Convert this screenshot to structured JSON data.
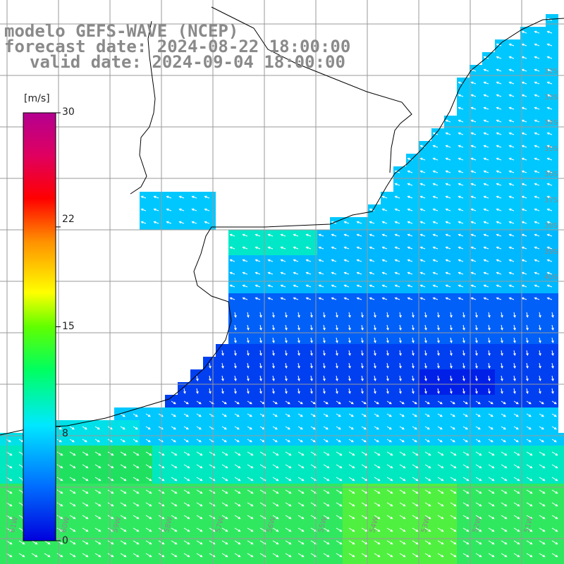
{
  "titles": {
    "model": "modelo GEFS-WAVE (NCEP)",
    "forecast": "forecast date: 2024-08-22 18:00:00",
    "valid": "valid date: 2024-09-04 18:00:00"
  },
  "colorbar": {
    "unit": "[m/s]",
    "ticks": [
      "30",
      "22",
      "15",
      "8",
      "0"
    ],
    "tick_values": [
      30,
      22,
      15,
      8,
      0
    ],
    "range": [
      0,
      30
    ],
    "colors": [
      "#0000dd",
      "#0070ff",
      "#00e8ff",
      "#00ff60",
      "#60ff00",
      "#ffff00",
      "#ff9000",
      "#ff0000",
      "#e00060",
      "#b40090"
    ]
  },
  "grid": {
    "lat_labels": [
      "32S",
      "33S",
      "34S",
      "35S",
      "36S",
      "37S",
      "38S",
      "39S",
      "40S"
    ],
    "lon_labels": [
      "61W",
      "60W",
      "59W",
      "58W",
      "57W",
      "56W",
      "55W",
      "54W",
      "53W",
      "52W",
      "51W"
    ]
  },
  "colors": {
    "background_land": "#ffffff",
    "coastline": "#000000",
    "gridline": "#9a9a9a",
    "arrows": "#ffffff",
    "title": "#8a8a8a"
  }
}
